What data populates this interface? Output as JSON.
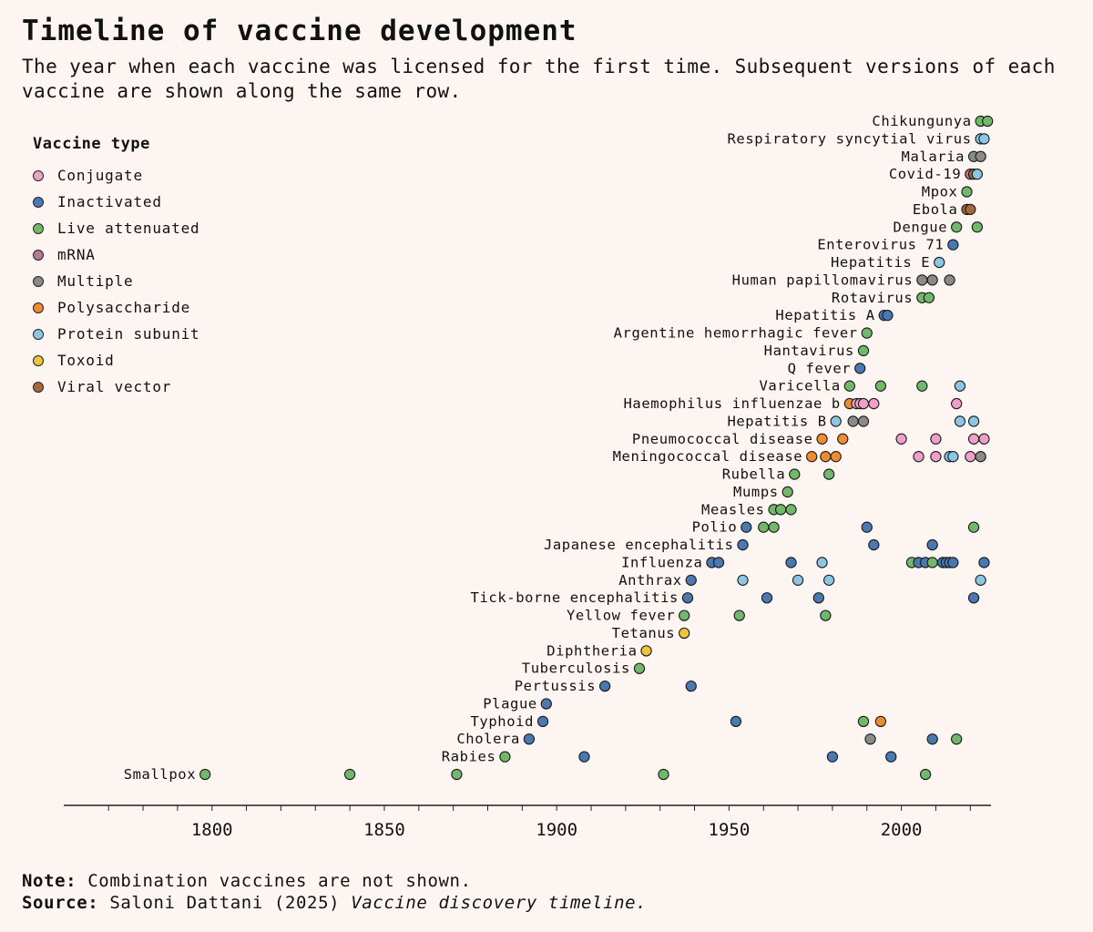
{
  "title": "Timeline of vaccine development",
  "subtitle": "The year when each vaccine was licensed for the first time. Subsequent versions of each vaccine are shown along the same row.",
  "legend_title": "Vaccine type",
  "note_label": "Note:",
  "note_text": "Combination vaccines are not shown.",
  "source_label": "Source:",
  "source_text": "Saloni Dattani (2025)",
  "source_italic": "Vaccine discovery timeline.",
  "chart_data": {
    "type": "scatter",
    "title": "Timeline of vaccine development",
    "xlabel": "",
    "ylabel": "",
    "xlim": [
      1757,
      2026
    ],
    "x_ticks": [
      1800,
      1850,
      1900,
      1950,
      2000
    ],
    "legend_placement": "top-left",
    "types": [
      {
        "key": "conjugate",
        "label": "Conjugate",
        "color": "#f0a0c8"
      },
      {
        "key": "inactivated",
        "label": "Inactivated",
        "color": "#4a78b0"
      },
      {
        "key": "live",
        "label": "Live attenuated",
        "color": "#72b86a"
      },
      {
        "key": "mrna",
        "label": "mRNA",
        "color": "#b07a9a"
      },
      {
        "key": "multiple",
        "label": "Multiple",
        "color": "#8a8a8a"
      },
      {
        "key": "polysaccharide",
        "label": "Polysaccharide",
        "color": "#ee8c30"
      },
      {
        "key": "protein",
        "label": "Protein subunit",
        "color": "#8cc6e2"
      },
      {
        "key": "toxoid",
        "label": "Toxoid",
        "color": "#eec43a"
      },
      {
        "key": "viral",
        "label": "Viral vector",
        "color": "#a66a3a"
      }
    ],
    "rows": [
      {
        "name": "Chikungunya",
        "points": [
          [
            2023,
            "live"
          ],
          [
            2025,
            "live"
          ]
        ]
      },
      {
        "name": "Respiratory syncytial virus",
        "points": [
          [
            2023,
            "protein"
          ],
          [
            2024,
            "protein"
          ]
        ]
      },
      {
        "name": "Malaria",
        "points": [
          [
            2021,
            "multiple"
          ],
          [
            2023,
            "multiple"
          ]
        ]
      },
      {
        "name": "Covid-19",
        "points": [
          [
            2020,
            "mrna"
          ],
          [
            2021,
            "viral"
          ],
          [
            2022,
            "protein"
          ]
        ]
      },
      {
        "name": "Mpox",
        "points": [
          [
            2019,
            "live"
          ]
        ]
      },
      {
        "name": "Ebola",
        "points": [
          [
            2019,
            "viral"
          ],
          [
            2020,
            "viral"
          ]
        ]
      },
      {
        "name": "Dengue",
        "points": [
          [
            2016,
            "live"
          ],
          [
            2022,
            "live"
          ]
        ]
      },
      {
        "name": "Enterovirus 71",
        "points": [
          [
            2015,
            "inactivated"
          ]
        ]
      },
      {
        "name": "Hepatitis E",
        "points": [
          [
            2011,
            "protein"
          ]
        ]
      },
      {
        "name": "Human papillomavirus",
        "points": [
          [
            2006,
            "multiple"
          ],
          [
            2009,
            "multiple"
          ],
          [
            2014,
            "multiple"
          ]
        ]
      },
      {
        "name": "Rotavirus",
        "points": [
          [
            2006,
            "live"
          ],
          [
            2008,
            "live"
          ]
        ]
      },
      {
        "name": "Hepatitis A",
        "points": [
          [
            1995,
            "inactivated"
          ],
          [
            1996,
            "inactivated"
          ]
        ]
      },
      {
        "name": "Argentine hemorrhagic fever",
        "points": [
          [
            1990,
            "live"
          ]
        ]
      },
      {
        "name": "Hantavirus",
        "points": [
          [
            1989,
            "live"
          ]
        ]
      },
      {
        "name": "Q fever",
        "points": [
          [
            1988,
            "inactivated"
          ]
        ]
      },
      {
        "name": "Varicella",
        "points": [
          [
            1985,
            "live"
          ],
          [
            1994,
            "live"
          ],
          [
            2006,
            "live"
          ],
          [
            2017,
            "protein"
          ]
        ]
      },
      {
        "name": "Haemophilus influenzae b",
        "points": [
          [
            1985,
            "polysaccharide"
          ],
          [
            1987,
            "conjugate"
          ],
          [
            1988,
            "conjugate"
          ],
          [
            1989,
            "conjugate"
          ],
          [
            1992,
            "conjugate"
          ],
          [
            2016,
            "conjugate"
          ]
        ]
      },
      {
        "name": "Hepatitis B",
        "points": [
          [
            1981,
            "protein"
          ],
          [
            1986,
            "multiple"
          ],
          [
            1989,
            "multiple"
          ],
          [
            2017,
            "protein"
          ],
          [
            2021,
            "protein"
          ]
        ]
      },
      {
        "name": "Pneumococcal disease",
        "points": [
          [
            1977,
            "polysaccharide"
          ],
          [
            1983,
            "polysaccharide"
          ],
          [
            2000,
            "conjugate"
          ],
          [
            2010,
            "conjugate"
          ],
          [
            2021,
            "conjugate"
          ],
          [
            2024,
            "conjugate"
          ]
        ]
      },
      {
        "name": "Meningococcal disease",
        "points": [
          [
            1974,
            "polysaccharide"
          ],
          [
            1978,
            "polysaccharide"
          ],
          [
            1981,
            "polysaccharide"
          ],
          [
            2005,
            "conjugate"
          ],
          [
            2010,
            "conjugate"
          ],
          [
            2014,
            "protein"
          ],
          [
            2015,
            "protein"
          ],
          [
            2020,
            "conjugate"
          ],
          [
            2023,
            "multiple"
          ]
        ]
      },
      {
        "name": "Rubella",
        "points": [
          [
            1969,
            "live"
          ],
          [
            1979,
            "live"
          ]
        ]
      },
      {
        "name": "Mumps",
        "points": [
          [
            1967,
            "live"
          ]
        ]
      },
      {
        "name": "Measles",
        "points": [
          [
            1963,
            "live"
          ],
          [
            1965,
            "live"
          ],
          [
            1968,
            "live"
          ]
        ]
      },
      {
        "name": "Polio",
        "points": [
          [
            1955,
            "inactivated"
          ],
          [
            1960,
            "live"
          ],
          [
            1963,
            "live"
          ],
          [
            1990,
            "inactivated"
          ],
          [
            2021,
            "live"
          ]
        ]
      },
      {
        "name": "Japanese encephalitis",
        "points": [
          [
            1954,
            "inactivated"
          ],
          [
            1992,
            "inactivated"
          ],
          [
            2009,
            "inactivated"
          ]
        ]
      },
      {
        "name": "Influenza",
        "points": [
          [
            1945,
            "inactivated"
          ],
          [
            1947,
            "inactivated"
          ],
          [
            1968,
            "inactivated"
          ],
          [
            1977,
            "protein"
          ],
          [
            2003,
            "live"
          ],
          [
            2005,
            "inactivated"
          ],
          [
            2007,
            "inactivated"
          ],
          [
            2009,
            "live"
          ],
          [
            2012,
            "inactivated"
          ],
          [
            2013,
            "inactivated"
          ],
          [
            2014,
            "inactivated"
          ],
          [
            2015,
            "inactivated"
          ],
          [
            2024,
            "inactivated"
          ]
        ]
      },
      {
        "name": "Anthrax",
        "points": [
          [
            1939,
            "inactivated"
          ],
          [
            1954,
            "protein"
          ],
          [
            1970,
            "protein"
          ],
          [
            1979,
            "protein"
          ],
          [
            2023,
            "protein"
          ]
        ]
      },
      {
        "name": "Tick-borne encephalitis",
        "points": [
          [
            1938,
            "inactivated"
          ],
          [
            1961,
            "inactivated"
          ],
          [
            1976,
            "inactivated"
          ],
          [
            2021,
            "inactivated"
          ]
        ]
      },
      {
        "name": "Yellow fever",
        "points": [
          [
            1937,
            "live"
          ],
          [
            1953,
            "live"
          ],
          [
            1978,
            "live"
          ]
        ]
      },
      {
        "name": "Tetanus",
        "points": [
          [
            1937,
            "toxoid"
          ]
        ]
      },
      {
        "name": "Diphtheria",
        "points": [
          [
            1926,
            "toxoid"
          ]
        ]
      },
      {
        "name": "Tuberculosis",
        "points": [
          [
            1924,
            "live"
          ]
        ]
      },
      {
        "name": "Pertussis",
        "points": [
          [
            1914,
            "inactivated"
          ],
          [
            1939,
            "inactivated"
          ]
        ]
      },
      {
        "name": "Plague",
        "points": [
          [
            1897,
            "inactivated"
          ]
        ]
      },
      {
        "name": "Typhoid",
        "points": [
          [
            1896,
            "inactivated"
          ],
          [
            1952,
            "inactivated"
          ],
          [
            1989,
            "live"
          ],
          [
            1994,
            "polysaccharide"
          ]
        ]
      },
      {
        "name": "Cholera",
        "points": [
          [
            1892,
            "inactivated"
          ],
          [
            1991,
            "multiple"
          ],
          [
            2009,
            "inactivated"
          ],
          [
            2016,
            "live"
          ]
        ]
      },
      {
        "name": "Rabies",
        "points": [
          [
            1885,
            "live"
          ],
          [
            1908,
            "inactivated"
          ],
          [
            1980,
            "inactivated"
          ],
          [
            1997,
            "inactivated"
          ]
        ]
      },
      {
        "name": "Smallpox",
        "points": [
          [
            1798,
            "live"
          ],
          [
            1840,
            "live"
          ],
          [
            1871,
            "live"
          ],
          [
            1931,
            "live"
          ],
          [
            2007,
            "live"
          ]
        ]
      }
    ]
  }
}
